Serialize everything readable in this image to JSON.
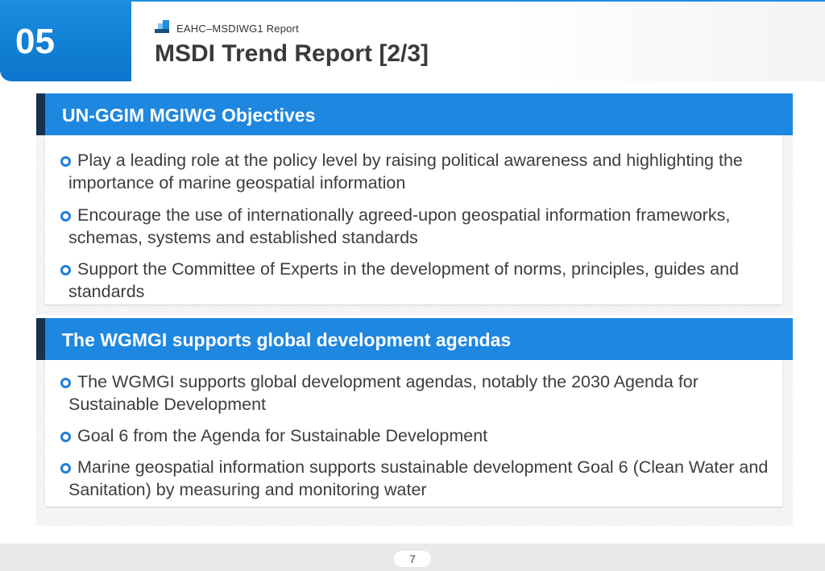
{
  "header": {
    "section_number": "05",
    "report_label": "EAHC–MSDIWG1 Report",
    "title": "MSDI Trend Report [2/3]"
  },
  "sections": [
    {
      "title": "UN-GGIM MGIWG Objectives",
      "bullets": [
        "Play a leading role at the policy level by raising political awareness and highlighting the importance of marine geospatial information",
        "Encourage the use of internationally agreed-upon geospatial information frameworks, schemas, systems and established standards",
        "Support the Committee of Experts in the development of norms, principles, guides and standards"
      ]
    },
    {
      "title": "The WGMGI supports global development agendas",
      "bullets": [
        "The WGMGI supports global development agendas, notably the 2030 Agenda for Sustainable Development",
        "Goal 6 from the Agenda for Sustainable Development",
        "Marine geospatial information supports sustainable development Goal 6 (Clean Water and Sanitation) by measuring and monitoring water"
      ]
    }
  ],
  "footer": {
    "page_number": "7"
  },
  "colors": {
    "accent": "#1e87e0",
    "dark": "#16324f",
    "text": "#3d3d3d"
  }
}
